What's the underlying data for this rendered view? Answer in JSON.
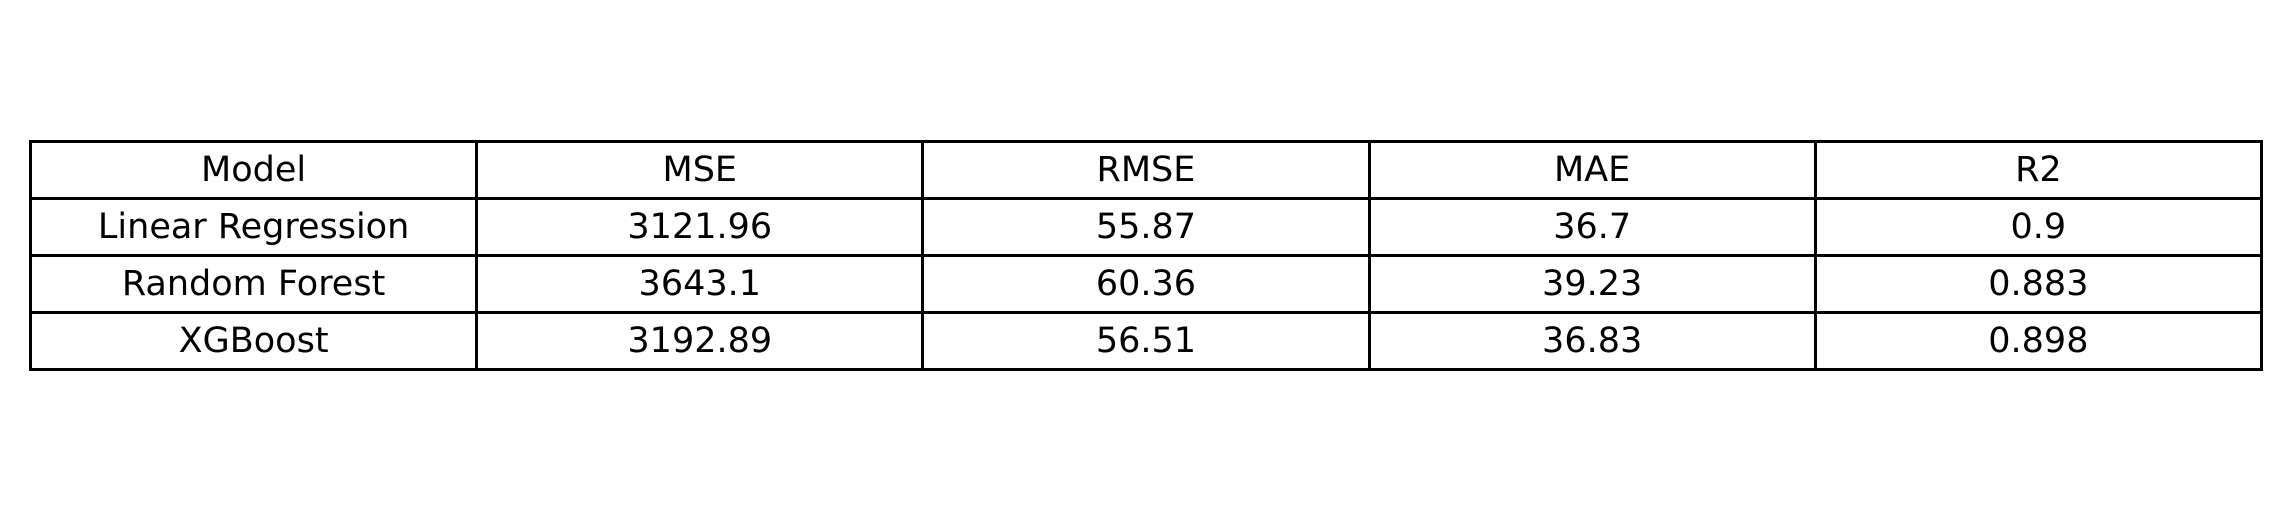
{
  "chart_data": {
    "type": "table",
    "columns": [
      "Model",
      "MSE",
      "RMSE",
      "MAE",
      "R2"
    ],
    "rows": [
      [
        "Linear Regression",
        "3121.96",
        "55.87",
        "36.7",
        "0.9"
      ],
      [
        "Random Forest",
        "3643.1",
        "60.36",
        "39.23",
        "0.883"
      ],
      [
        "XGBoost",
        "3192.89",
        "56.51",
        "36.83",
        "0.898"
      ]
    ]
  },
  "colors": {
    "border": "#000000",
    "text": "#000000",
    "background": "#ffffff"
  }
}
